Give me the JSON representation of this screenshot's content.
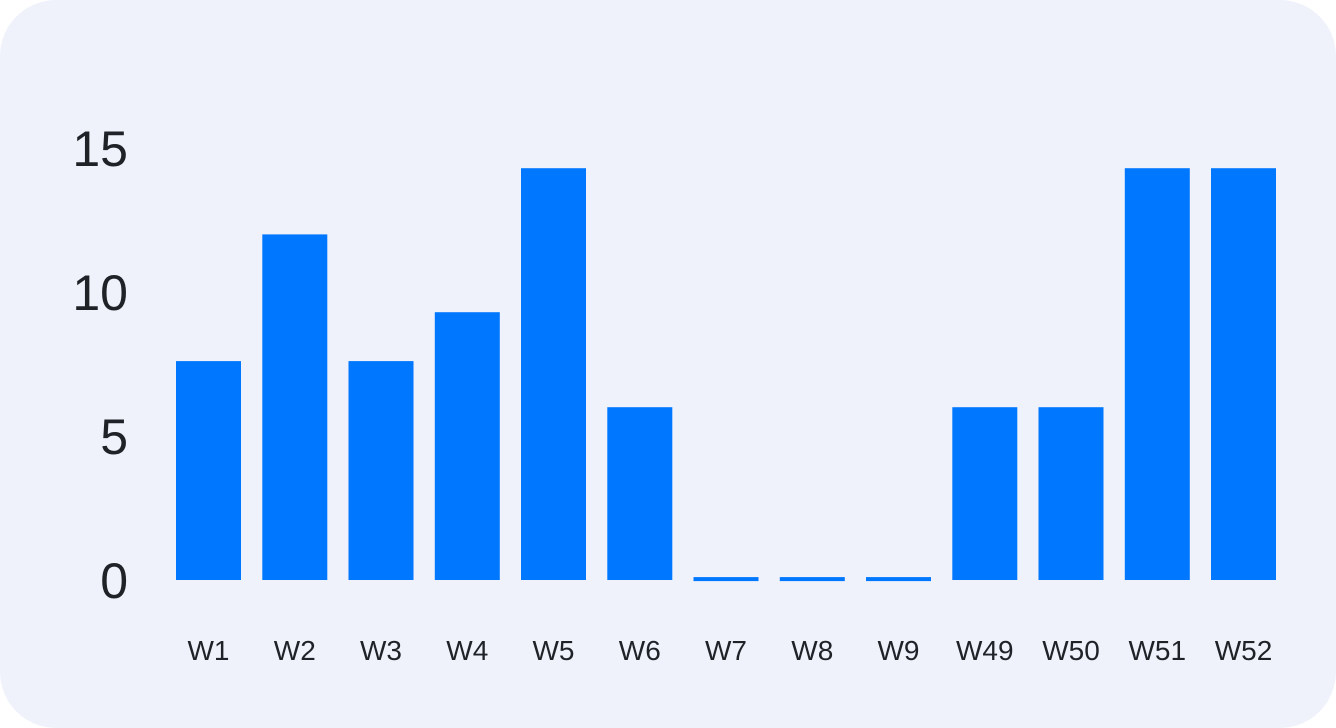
{
  "chart_data": {
    "type": "bar",
    "categories": [
      "W1",
      "W2",
      "W3",
      "W4",
      "W5",
      "W6",
      "W7",
      "W8",
      "W9",
      "W49",
      "W50",
      "W51",
      "W52"
    ],
    "values": [
      7.6,
      12,
      7.6,
      9.3,
      14.3,
      6,
      0.1,
      0.1,
      0.1,
      6,
      6,
      14.3,
      14.3
    ],
    "yticks": [
      "0",
      "5",
      "10",
      "15"
    ],
    "ylim": [
      0,
      15
    ],
    "grid": false,
    "bar_color": "#0077ff",
    "background_color": "#eff2fb"
  }
}
